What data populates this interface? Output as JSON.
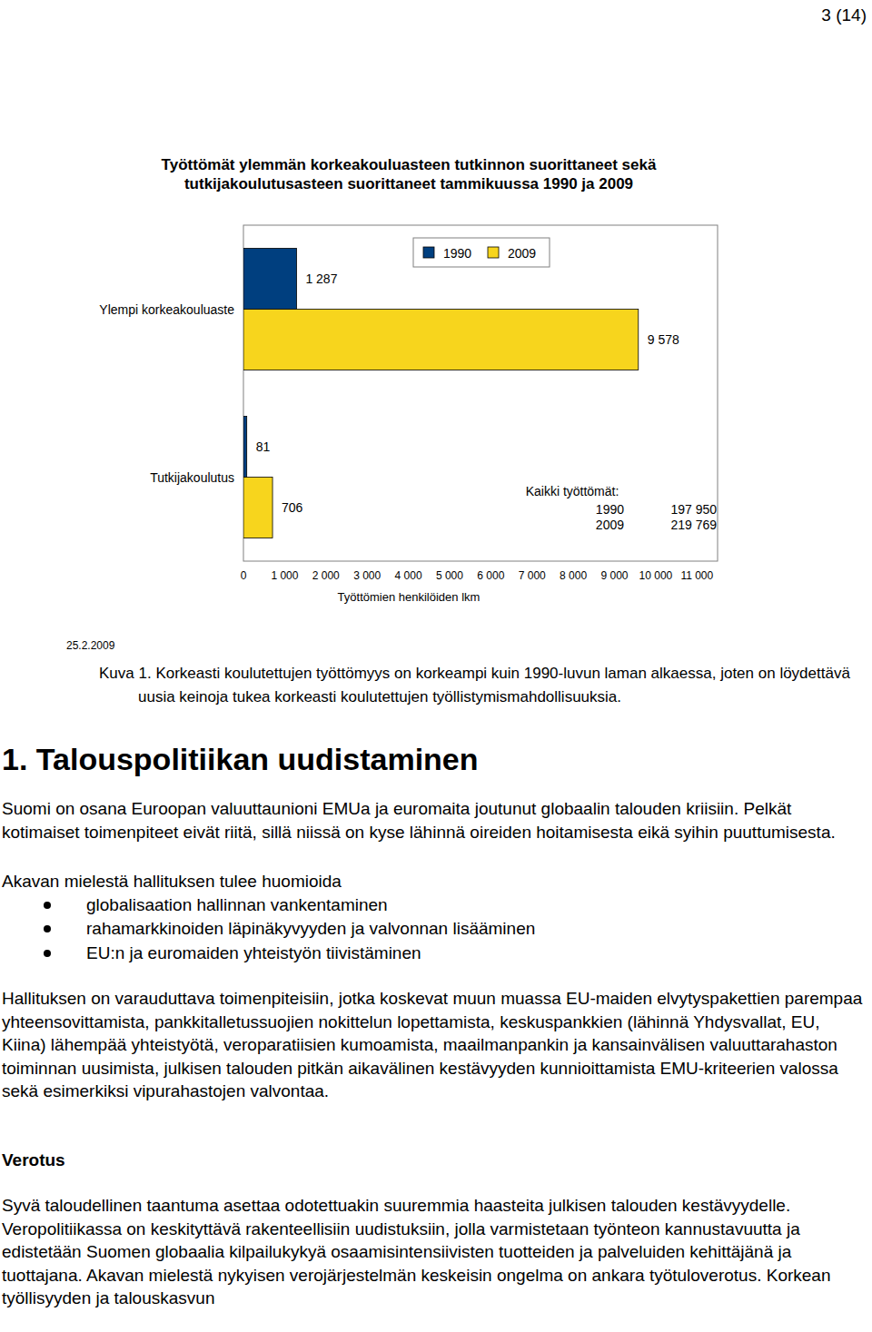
{
  "page_number": "3 (14)",
  "chart_data": {
    "type": "bar",
    "orientation": "horizontal",
    "title": "Työttömät ylemmän korkeakouluasteen tutkinnon suorittaneet sekä\ntutkijakoulutusasteen suorittaneet tammikuussa 1990 ja 2009",
    "xlabel": "Työttömien henkilöiden lkm",
    "categories": [
      "Ylempi korkeakouluaste",
      "Tutkijakoulutus"
    ],
    "series": [
      {
        "name": "1990",
        "color": "#003f7f",
        "values": [
          1287,
          81
        ],
        "value_labels": [
          "1 287",
          "81"
        ]
      },
      {
        "name": "2009",
        "color": "#f7d51d",
        "values": [
          9578,
          706
        ],
        "value_labels": [
          "9 578",
          "706"
        ]
      }
    ],
    "xlim": [
      0,
      11500
    ],
    "xticks": [
      0,
      {
        "value": 1000,
        "label": "1 000"
      },
      {
        "value": 2000,
        "label": "2 000"
      },
      {
        "value": 3000,
        "label": "3 000"
      },
      {
        "value": 4000,
        "label": "4 000"
      },
      {
        "value": 5000,
        "label": "5 000"
      },
      {
        "value": 6000,
        "label": "6 000"
      },
      {
        "value": 7000,
        "label": "7 000"
      },
      {
        "value": 8000,
        "label": "8 000"
      },
      {
        "value": 9000,
        "label": "9 000"
      },
      {
        "value": 10000,
        "label": "10 000"
      },
      {
        "value": 11000,
        "label": "11 000"
      }
    ],
    "data_labels": true,
    "legend": "top",
    "annotations": [
      {
        "title": "Kaikki työttömät:",
        "rows": [
          [
            "1990",
            "197 950"
          ],
          [
            "2009",
            "219 769"
          ]
        ]
      }
    ]
  },
  "date": "25.2.2009",
  "caption": {
    "label": "Kuva 1.",
    "text": "Korkeasti koulutettujen työttömyys on korkeampi kuin 1990-luvun laman alkaessa, joten on löydettävä uusia keinoja tukea korkeasti koulutettujen työllistymismahdollisuuksia."
  },
  "sections": [
    {
      "heading": "1. Talouspolitiikan uudistaminen",
      "blocks": [
        {
          "text": "Suomi on osana Euroopan valuuttaunioni EMUa ja euromaita joutunut globaalin talouden kriisiin. Pelkät kotimaiset toimenpiteet eivät riitä, sillä niissä on kyse lähinnä oireiden hoitamisesta eikä syihin puuttumisesta."
        },
        {
          "text": "Akavan mielestä hallituksen tulee huomioida",
          "bullets": [
            "globalisaation hallinnan vankentaminen",
            "rahamarkkinoiden läpinäkyvyyden ja valvonnan lisääminen",
            "EU:n ja euromaiden yhteistyön tiivistäminen"
          ]
        },
        {
          "text": "Hallituksen on varauduttava toimenpiteisiin, jotka koskevat muun muassa EU-maiden elvytyspakettien parempaa yhteensovittamista, pankkitalletussuojien nokittelun lopettamista, keskuspankkien (lähinnä Yhdysvallat, EU, Kiina) lähempää yhteistyötä, veroparatiisien kumoamista, maailmanpankin ja kansainvälisen valuuttarahaston toiminnan uusimista, julkisen talouden pitkän aikavälinen kestävyyden kunnioittamista EMU-kriteerien valossa sekä esimerkiksi vipurahastojen valvontaa."
        }
      ]
    },
    {
      "heading": "Verotus",
      "blocks": [
        {
          "text": "Syvä taloudellinen taantuma asettaa odotettuakin suuremmia haasteita julkisen talouden kestävyydelle. Veropolitiikassa on keskityttävä rakenteellisiin uudistuksiin, jolla varmistetaan työnteon kannustavuutta ja edistetään Suomen globaalia kilpailukykyä osaamisintensiivisten tuotteiden ja palveluiden kehittäjänä ja tuottajana. Akavan mielestä nykyisen verojärjestelmän keskeisin ongelma on ankara työtuloverotus. Korkean työllisyyden ja talouskasvun"
        }
      ]
    }
  ]
}
